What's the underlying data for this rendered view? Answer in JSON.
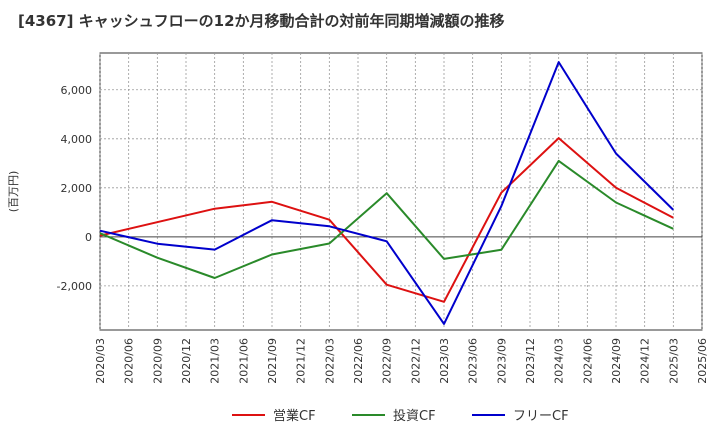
{
  "chart_data": {
    "type": "line",
    "title": "[4367]  キャッシュフローの12か月移動合計の対前年同期増減額の推移",
    "ylabel": "(百万円)",
    "xlabel": "",
    "x": [
      "2020/03",
      "2020/06",
      "2020/09",
      "2020/12",
      "2021/03",
      "2021/06",
      "2021/09",
      "2021/12",
      "2022/03",
      "2022/06",
      "2022/09",
      "2022/12",
      "2023/03",
      "2023/06",
      "2023/09",
      "2023/12",
      "2024/03",
      "2024/06",
      "2024/09",
      "2024/12",
      "2025/03",
      "2025/06"
    ],
    "yticks": [
      -2000,
      0,
      2000,
      4000,
      6000
    ],
    "ytick_labels": [
      "-2,000",
      "0",
      "2,000",
      "4,000",
      "6,000"
    ],
    "ylim": [
      -3800,
      7500
    ],
    "grid": true,
    "legend_position": "bottom",
    "series": [
      {
        "name": "営業CF",
        "color": "#dd1111",
        "values": [
          50,
          null,
          null,
          null,
          1150,
          null,
          1430,
          null,
          700,
          null,
          -1950,
          null,
          -2650,
          null,
          1800,
          null,
          4030,
          null,
          2000,
          null,
          780,
          null
        ]
      },
      {
        "name": "投資CF",
        "color": "#2a8a2a",
        "values": [
          150,
          null,
          -850,
          null,
          -1680,
          null,
          -720,
          null,
          -270,
          null,
          1780,
          null,
          -900,
          null,
          -530,
          null,
          3100,
          null,
          1400,
          null,
          330,
          null
        ]
      },
      {
        "name": "フリーCF",
        "color": "#0000cc",
        "values": [
          250,
          null,
          -280,
          null,
          -520,
          null,
          680,
          null,
          430,
          null,
          -180,
          null,
          -3550,
          null,
          1250,
          null,
          7130,
          null,
          3400,
          null,
          1100,
          null
        ]
      }
    ]
  }
}
